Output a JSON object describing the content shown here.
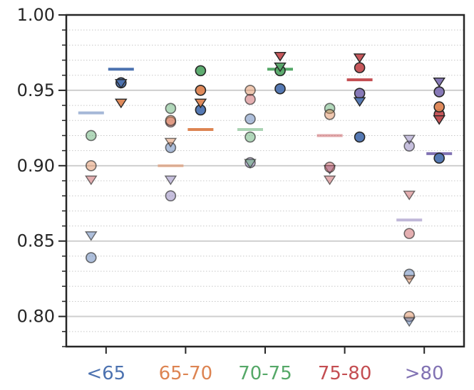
{
  "chart_data": {
    "type": "scatter",
    "title": "",
    "xlabel": "",
    "ylabel": "",
    "ylim": [
      0.78,
      1.0
    ],
    "yticks_major": [
      0.8,
      0.85,
      0.9,
      0.95,
      1.0
    ],
    "ytick_labels": [
      "0.80",
      "0.85",
      "0.90",
      "0.95",
      "1.00"
    ],
    "grid": "major solid, minor dotted (step 0.01)",
    "categories": [
      "<65",
      "65-70",
      "70-75",
      "75-80",
      ">80"
    ],
    "category_colors": {
      "<65": "#4c72b0",
      "65-70": "#dd8452",
      "70-75": "#55a868",
      "75-80": "#c44e52",
      ">80": "#8172b3"
    },
    "series": [
      {
        "name": "<65",
        "color": "#4c72b0",
        "in_group": {
          "mean": 0.935,
          "points": [
            {
              "marker": "circle",
              "value": 0.839
            },
            {
              "marker": "triangle",
              "value": 0.854
            }
          ]
        },
        "out_group": {
          "mean": 0.964,
          "points": [
            {
              "marker": "circle",
              "value": 0.955
            },
            {
              "marker": "triangle",
              "value": 0.955
            }
          ]
        }
      },
      {
        "name": "65-70",
        "color": "#dd8452",
        "in_group": {
          "mean": 0.9,
          "points": [
            {
              "marker": "circle",
              "value": 0.93
            },
            {
              "marker": "triangle",
              "value": 0.916
            }
          ]
        },
        "out_group": {
          "mean": 0.924,
          "points": [
            {
              "marker": "circle",
              "value": 0.95
            },
            {
              "marker": "triangle",
              "value": 0.942
            }
          ]
        }
      },
      {
        "name": "70-75",
        "color": "#55a868",
        "in_group": {
          "mean": 0.924,
          "points": [
            {
              "marker": "circle",
              "value": 0.919
            },
            {
              "marker": "triangle",
              "value": 0.902
            }
          ]
        },
        "out_group": {
          "mean": 0.964,
          "points": [
            {
              "marker": "circle",
              "value": 0.963
            },
            {
              "marker": "triangle",
              "value": 0.966
            }
          ]
        }
      },
      {
        "name": "75-80",
        "color": "#c44e52",
        "in_group": {
          "mean": 0.92,
          "points": [
            {
              "marker": "circle",
              "value": 0.899
            },
            {
              "marker": "triangle",
              "value": 0.891
            }
          ]
        },
        "out_group": {
          "mean": 0.957,
          "points": [
            {
              "marker": "circle",
              "value": 0.965
            },
            {
              "marker": "triangle",
              "value": 0.972
            }
          ]
        }
      },
      {
        "name": ">80",
        "color": "#8172b3",
        "in_group": {
          "mean": 0.864,
          "points": [
            {
              "marker": "circle",
              "value": 0.913
            },
            {
              "marker": "triangle",
              "value": 0.918
            }
          ]
        },
        "out_group": {
          "mean": 0.908,
          "points": [
            {
              "marker": "circle",
              "value": 0.949
            },
            {
              "marker": "triangle",
              "value": 0.956
            }
          ]
        }
      }
    ],
    "other_group_points": [
      {
        "category": "65-70",
        "series": "<65",
        "side": "in",
        "marker": "circle",
        "value": 0.912
      },
      {
        "category": "65-70",
        "series": "<65",
        "side": "out",
        "marker": "circle",
        "value": 0.937
      },
      {
        "category": "65-70",
        "series": "70-75",
        "side": "in",
        "marker": "circle",
        "value": 0.938
      },
      {
        "category": "65-70",
        "series": "70-75",
        "side": "out",
        "marker": "circle",
        "value": 0.963
      },
      {
        "category": "65-70",
        "series": "75-80",
        "side": "in",
        "marker": "circle",
        "value": 0.929
      },
      {
        "category": "65-70",
        "series": ">80",
        "side": "in",
        "marker": "circle",
        "value": 0.88
      },
      {
        "category": "65-70",
        "series": ">80",
        "side": "in",
        "marker": "triangle",
        "value": 0.891
      },
      {
        "category": "<65",
        "series": "65-70",
        "side": "in",
        "marker": "circle",
        "value": 0.9
      },
      {
        "category": "<65",
        "series": "70-75",
        "side": "in",
        "marker": "circle",
        "value": 0.92
      },
      {
        "category": "<65",
        "series": "75-80",
        "side": "in",
        "marker": "triangle",
        "value": 0.891
      },
      {
        "category": "<65",
        "series": "65-70",
        "side": "out",
        "marker": "triangle",
        "value": 0.942
      },
      {
        "category": "70-75",
        "series": "<65",
        "side": "in",
        "marker": "circle",
        "value": 0.931
      },
      {
        "category": "70-75",
        "series": "65-70",
        "side": "in",
        "marker": "circle",
        "value": 0.95
      },
      {
        "category": "70-75",
        "series": "75-80",
        "side": "in",
        "marker": "circle",
        "value": 0.944
      },
      {
        "category": "70-75",
        "series": ">80",
        "side": "in",
        "marker": "circle",
        "value": 0.902
      },
      {
        "category": "70-75",
        "series": "<65",
        "side": "out",
        "marker": "circle",
        "value": 0.951
      },
      {
        "category": "70-75",
        "series": "75-80",
        "side": "out",
        "marker": "triangle",
        "value": 0.973
      },
      {
        "category": "75-80",
        "series": "70-75",
        "side": "in",
        "marker": "circle",
        "value": 0.938
      },
      {
        "category": "75-80",
        "series": "65-70",
        "side": "in",
        "marker": "circle",
        "value": 0.934
      },
      {
        "category": "75-80",
        "series": ">80",
        "side": "in",
        "marker": "triangle",
        "value": 0.898
      },
      {
        "category": "75-80",
        "series": "<65",
        "side": "out",
        "marker": "circle",
        "value": 0.919
      },
      {
        "category": "75-80",
        "series": ">80",
        "side": "out",
        "marker": "circle",
        "value": 0.948
      },
      {
        "category": "75-80",
        "series": "<65",
        "side": "out",
        "marker": "triangle",
        "value": 0.943
      },
      {
        "category": ">80",
        "series": "75-80",
        "side": "in",
        "marker": "circle",
        "value": 0.855
      },
      {
        "category": ">80",
        "series": "<65",
        "side": "in",
        "marker": "circle",
        "value": 0.828
      },
      {
        "category": ">80",
        "series": "65-70",
        "side": "in",
        "marker": "circle",
        "value": 0.8
      },
      {
        "category": ">80",
        "series": "75-80",
        "side": "in",
        "marker": "triangle",
        "value": 0.881
      },
      {
        "category": ">80",
        "series": "65-70",
        "side": "in",
        "marker": "triangle",
        "value": 0.825
      },
      {
        "category": ">80",
        "series": "<65",
        "side": "in",
        "marker": "triangle",
        "value": 0.797
      },
      {
        "category": ">80",
        "series": "<65",
        "side": "out",
        "marker": "circle",
        "value": 0.905
      },
      {
        "category": ">80",
        "series": "75-80",
        "side": "out",
        "marker": "circle",
        "value": 0.934
      },
      {
        "category": ">80",
        "series": "65-70",
        "side": "out",
        "marker": "circle",
        "value": 0.939
      },
      {
        "category": ">80",
        "series": "75-80",
        "side": "out",
        "marker": "triangle",
        "value": 0.931
      }
    ]
  }
}
